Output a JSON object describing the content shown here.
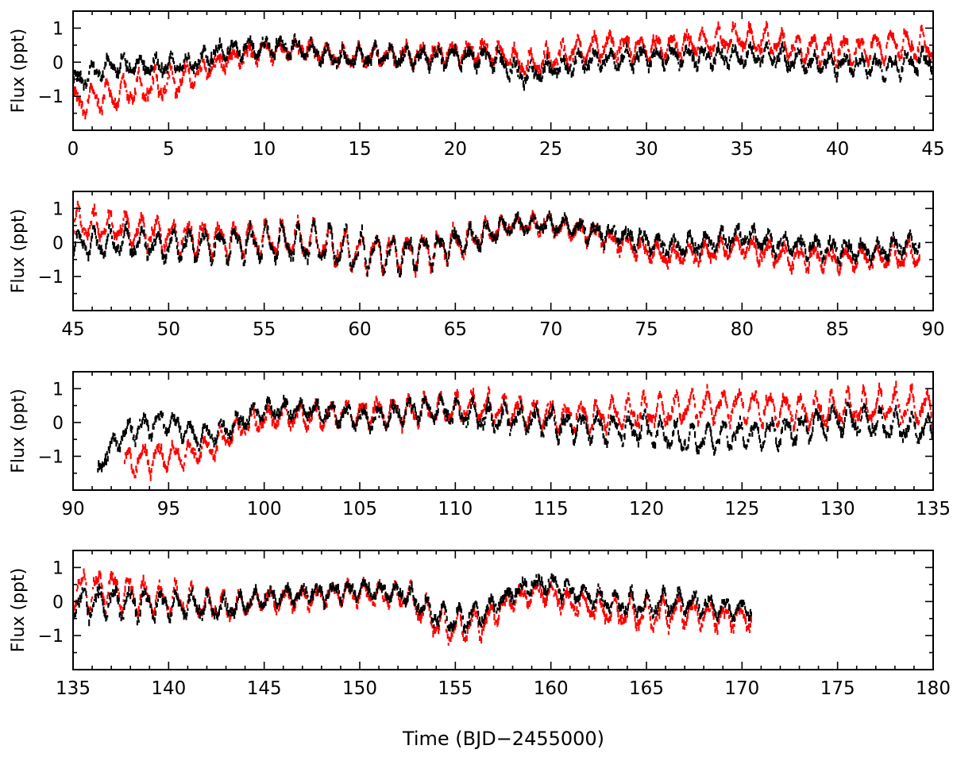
{
  "figure": {
    "xlabel": "Time (BJD−2455000)",
    "ylabel": "Flux (ppt)"
  },
  "chart_data": [
    {
      "type": "scatter",
      "panel": 1,
      "xlim": [
        0,
        45
      ],
      "ylim": [
        -2,
        1.5
      ],
      "xticks": [
        "0",
        "5",
        "10",
        "15",
        "20",
        "25",
        "30",
        "35",
        "40",
        "45"
      ],
      "yticks": [
        "1",
        "0",
        "−1"
      ],
      "ytick_values": [
        1,
        0,
        -1
      ],
      "ylabel": "Flux (ppt)",
      "data_range": [
        0,
        45
      ],
      "series": [
        {
          "name": "red",
          "color": "#ff0000",
          "trend": [
            [
              0,
              -1.25
            ],
            [
              2,
              -0.95
            ],
            [
              4,
              -0.75
            ],
            [
              6,
              -0.45
            ],
            [
              8,
              0.05
            ],
            [
              10,
              0.35
            ],
            [
              12,
              0.4
            ],
            [
              14,
              0.15
            ],
            [
              16,
              0.2
            ],
            [
              18,
              0.2
            ],
            [
              20,
              0.3
            ],
            [
              22,
              0.3
            ],
            [
              24,
              -0.1
            ],
            [
              26,
              0.3
            ],
            [
              28,
              0.5
            ],
            [
              30,
              0.4
            ],
            [
              32,
              0.5
            ],
            [
              35,
              0.7
            ],
            [
              38,
              0.4
            ],
            [
              41,
              0.35
            ],
            [
              43,
              0.55
            ],
            [
              45,
              0.45
            ]
          ],
          "amp": [
            [
              0,
              0.35
            ],
            [
              6,
              0.35
            ],
            [
              7,
              0.2
            ],
            [
              45,
              0.35
            ]
          ]
        },
        {
          "name": "black",
          "color": "#000000",
          "trend": [
            [
              0,
              -0.6
            ],
            [
              2,
              -0.1
            ],
            [
              4,
              -0.1
            ],
            [
              6,
              -0.05
            ],
            [
              8,
              0.35
            ],
            [
              10,
              0.45
            ],
            [
              12,
              0.4
            ],
            [
              14,
              0.1
            ],
            [
              16,
              0.2
            ],
            [
              18,
              0.15
            ],
            [
              20,
              0.15
            ],
            [
              22,
              0.15
            ],
            [
              23.5,
              -0.4
            ],
            [
              25,
              -0.2
            ],
            [
              27,
              0.05
            ],
            [
              30,
              0.15
            ],
            [
              33,
              0.15
            ],
            [
              36,
              0.2
            ],
            [
              38,
              0.0
            ],
            [
              41,
              -0.1
            ],
            [
              43,
              -0.1
            ],
            [
              45,
              0.1
            ]
          ],
          "amp": [
            [
              0,
              0.2
            ],
            [
              45,
              0.25
            ]
          ]
        }
      ]
    },
    {
      "type": "scatter",
      "panel": 2,
      "xlim": [
        45,
        90
      ],
      "ylim": [
        -2,
        1.5
      ],
      "xticks": [
        "45",
        "50",
        "55",
        "60",
        "65",
        "70",
        "75",
        "80",
        "85",
        "90"
      ],
      "yticks": [
        "1",
        "0",
        "−1"
      ],
      "ytick_values": [
        1,
        0,
        -1
      ],
      "ylabel": "Flux (ppt)",
      "data_range": [
        45,
        89.3
      ],
      "series": [
        {
          "name": "red",
          "color": "#ff0000",
          "trend": [
            [
              45,
              0.6
            ],
            [
              48,
              0.4
            ],
            [
              50,
              0.2
            ],
            [
              53,
              0.1
            ],
            [
              56,
              0.1
            ],
            [
              58,
              0.0
            ],
            [
              60,
              -0.3
            ],
            [
              62,
              -0.3
            ],
            [
              64,
              -0.2
            ],
            [
              66,
              0.15
            ],
            [
              68,
              0.55
            ],
            [
              70,
              0.5
            ],
            [
              72,
              0.3
            ],
            [
              74,
              -0.05
            ],
            [
              76,
              -0.4
            ],
            [
              78,
              -0.3
            ],
            [
              80,
              -0.1
            ],
            [
              82,
              -0.4
            ],
            [
              85,
              -0.5
            ],
            [
              87,
              -0.45
            ],
            [
              89.3,
              -0.35
            ]
          ],
          "amp": [
            [
              45,
              0.35
            ],
            [
              60,
              0.45
            ],
            [
              64,
              0.4
            ],
            [
              68,
              0.2
            ],
            [
              89.3,
              0.3
            ]
          ]
        },
        {
          "name": "black",
          "color": "#000000",
          "trend": [
            [
              45,
              0.0
            ],
            [
              48,
              0.0
            ],
            [
              50,
              -0.1
            ],
            [
              53,
              -0.05
            ],
            [
              56,
              0.0
            ],
            [
              58,
              -0.05
            ],
            [
              60,
              -0.3
            ],
            [
              62,
              -0.35
            ],
            [
              64,
              -0.2
            ],
            [
              66,
              0.15
            ],
            [
              68,
              0.5
            ],
            [
              70,
              0.55
            ],
            [
              72,
              0.35
            ],
            [
              74,
              0.15
            ],
            [
              76,
              -0.1
            ],
            [
              78,
              -0.05
            ],
            [
              80,
              0.2
            ],
            [
              82,
              -0.05
            ],
            [
              85,
              -0.2
            ],
            [
              87,
              -0.25
            ],
            [
              89.3,
              0.0
            ]
          ],
          "amp": [
            [
              45,
              0.3
            ],
            [
              60,
              0.5
            ],
            [
              64,
              0.4
            ],
            [
              68,
              0.2
            ],
            [
              89.3,
              0.25
            ]
          ]
        }
      ]
    },
    {
      "type": "scatter",
      "panel": 3,
      "xlim": [
        90,
        135
      ],
      "ylim": [
        -2,
        1.5
      ],
      "xticks": [
        "90",
        "95",
        "100",
        "105",
        "110",
        "115",
        "120",
        "125",
        "130",
        "135"
      ],
      "yticks": [
        "1",
        "0",
        "−1"
      ],
      "ytick_values": [
        1,
        0,
        -1
      ],
      "ylabel": "Flux (ppt)",
      "series": [
        {
          "name": "red",
          "color": "#ff0000",
          "data_range": [
            92.7,
            135
          ],
          "trend": [
            [
              92.7,
              -1.2
            ],
            [
              94,
              -1.05
            ],
            [
              96,
              -0.95
            ],
            [
              97.5,
              -0.65
            ],
            [
              99,
              -0.05
            ],
            [
              101,
              0.2
            ],
            [
              103,
              0.2
            ],
            [
              105,
              0.3
            ],
            [
              107,
              0.3
            ],
            [
              109,
              0.4
            ],
            [
              111,
              0.45
            ],
            [
              113,
              0.35
            ],
            [
              115,
              0.2
            ],
            [
              117,
              0.15
            ],
            [
              119,
              0.3
            ],
            [
              121,
              0.35
            ],
            [
              123,
              0.5
            ],
            [
              125,
              0.5
            ],
            [
              127,
              0.4
            ],
            [
              129,
              0.35
            ],
            [
              131,
              0.45
            ],
            [
              133,
              0.5
            ],
            [
              135,
              0.45
            ]
          ],
          "amp": [
            [
              92.7,
              0.35
            ],
            [
              100,
              0.25
            ],
            [
              108,
              0.35
            ],
            [
              135,
              0.4
            ]
          ]
        },
        {
          "name": "black",
          "color": "#000000",
          "data_range": [
            91.3,
            135
          ],
          "trend": [
            [
              91.3,
              -1.4
            ],
            [
              92.3,
              -0.5
            ],
            [
              93.5,
              -0.1
            ],
            [
              95,
              0.0
            ],
            [
              96.5,
              -0.4
            ],
            [
              98,
              -0.2
            ],
            [
              100,
              0.4
            ],
            [
              102,
              0.4
            ],
            [
              104,
              0.2
            ],
            [
              106,
              0.1
            ],
            [
              108,
              0.4
            ],
            [
              110,
              0.3
            ],
            [
              112,
              0.1
            ],
            [
              114,
              0.1
            ],
            [
              116,
              -0.1
            ],
            [
              118,
              -0.2
            ],
            [
              120,
              -0.2
            ],
            [
              122,
              -0.5
            ],
            [
              124,
              -0.4
            ],
            [
              126,
              -0.35
            ],
            [
              128,
              -0.2
            ],
            [
              130,
              0.1
            ],
            [
              132,
              0.0
            ],
            [
              134,
              -0.2
            ],
            [
              135,
              -0.2
            ]
          ],
          "amp": [
            [
              91.3,
              0.1
            ],
            [
              93,
              0.3
            ],
            [
              100,
              0.2
            ],
            [
              108,
              0.3
            ],
            [
              118,
              0.35
            ],
            [
              135,
              0.35
            ]
          ]
        }
      ]
    },
    {
      "type": "scatter",
      "panel": 4,
      "xlim": [
        135,
        180
      ],
      "ylim": [
        -2,
        1.5
      ],
      "xticks": [
        "135",
        "140",
        "145",
        "150",
        "155",
        "160",
        "165",
        "170",
        "175",
        "180"
      ],
      "yticks": [
        "1",
        "0",
        "−1"
      ],
      "ytick_values": [
        1,
        0,
        -1
      ],
      "ylabel": "Flux (ppt)",
      "data_range": [
        135,
        170.5
      ],
      "series": [
        {
          "name": "red",
          "color": "#ff0000",
          "trend": [
            [
              135,
              0.3
            ],
            [
              137,
              0.4
            ],
            [
              139,
              0.1
            ],
            [
              141,
              0.0
            ],
            [
              143,
              -0.15
            ],
            [
              145,
              0.05
            ],
            [
              147,
              0.1
            ],
            [
              149,
              0.25
            ],
            [
              151,
              0.2
            ],
            [
              152.5,
              0.15
            ],
            [
              154,
              -0.6
            ],
            [
              155,
              -0.8
            ],
            [
              156.5,
              -0.6
            ],
            [
              158,
              0.1
            ],
            [
              159.5,
              0.3
            ],
            [
              161,
              0.0
            ],
            [
              163,
              -0.25
            ],
            [
              165,
              -0.4
            ],
            [
              167,
              -0.3
            ],
            [
              169,
              -0.45
            ],
            [
              170.5,
              -0.5
            ]
          ],
          "amp": [
            [
              135,
              0.5
            ],
            [
              140,
              0.4
            ],
            [
              145,
              0.25
            ],
            [
              152,
              0.25
            ],
            [
              155,
              0.45
            ],
            [
              158,
              0.2
            ],
            [
              165,
              0.4
            ],
            [
              170.5,
              0.25
            ]
          ]
        },
        {
          "name": "black",
          "color": "#000000",
          "trend": [
            [
              135,
              0.0
            ],
            [
              137,
              0.0
            ],
            [
              139,
              -0.1
            ],
            [
              141,
              -0.1
            ],
            [
              143,
              -0.2
            ],
            [
              145,
              0.1
            ],
            [
              147,
              0.2
            ],
            [
              149,
              0.3
            ],
            [
              151,
              0.35
            ],
            [
              152.5,
              0.2
            ],
            [
              154,
              -0.4
            ],
            [
              155,
              -0.55
            ],
            [
              156.5,
              -0.3
            ],
            [
              158,
              0.3
            ],
            [
              159.5,
              0.55
            ],
            [
              161,
              0.3
            ],
            [
              163,
              0.0
            ],
            [
              165,
              -0.1
            ],
            [
              167,
              0.0
            ],
            [
              169,
              -0.2
            ],
            [
              170.5,
              -0.2
            ]
          ],
          "amp": [
            [
              135,
              0.4
            ],
            [
              140,
              0.35
            ],
            [
              145,
              0.2
            ],
            [
              152,
              0.2
            ],
            [
              155,
              0.35
            ],
            [
              158,
              0.15
            ],
            [
              165,
              0.3
            ],
            [
              170.5,
              0.2
            ]
          ]
        }
      ]
    }
  ]
}
